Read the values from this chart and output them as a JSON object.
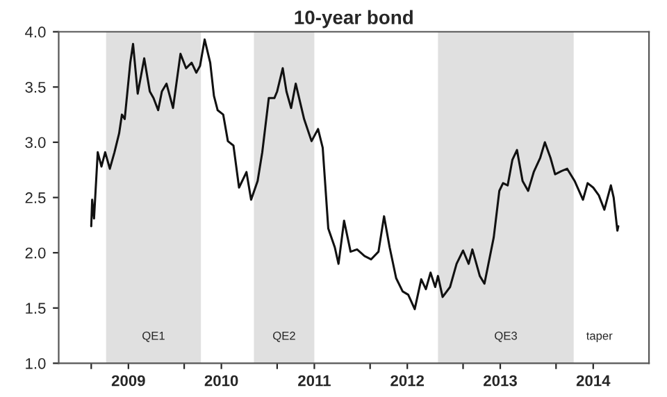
{
  "chart_data": {
    "type": "line",
    "title": "10-year bond",
    "x": [
      2009.0,
      2009.01,
      2009.03,
      2009.07,
      2009.11,
      2009.15,
      2009.2,
      2009.25,
      2009.3,
      2009.33,
      2009.36,
      2009.42,
      2009.45,
      2009.5,
      2009.57,
      2009.63,
      2009.67,
      2009.72,
      2009.76,
      2009.81,
      2009.88,
      2009.96,
      2010.02,
      2010.08,
      2010.13,
      2010.17,
      2010.22,
      2010.28,
      2010.32,
      2010.36,
      2010.42,
      2010.47,
      2010.53,
      2010.59,
      2010.67,
      2010.72,
      2010.79,
      2010.84,
      2010.91,
      2010.97,
      2011.0,
      2011.06,
      2011.1,
      2011.15,
      2011.2,
      2011.29,
      2011.37,
      2011.44,
      2011.49,
      2011.55,
      2011.62,
      2011.66,
      2011.72,
      2011.79,
      2011.86,
      2011.94,
      2012.01,
      2012.09,
      2012.15,
      2012.21,
      2012.28,
      2012.35,
      2012.41,
      2012.48,
      2012.55,
      2012.6,
      2012.65,
      2012.7,
      2012.73,
      2012.78,
      2012.86,
      2012.93,
      2013.0,
      2013.06,
      2013.1,
      2013.18,
      2013.23,
      2013.33,
      2013.39,
      2013.43,
      2013.48,
      2013.53,
      2013.58,
      2013.64,
      2013.7,
      2013.76,
      2013.83,
      2013.88,
      2013.94,
      2013.99,
      2014.06,
      2014.12,
      2014.2,
      2014.29,
      2014.34,
      2014.4,
      2014.46,
      2014.52,
      2014.59,
      2014.62,
      2014.66,
      2014.67
    ],
    "series": [
      {
        "color": "#111111",
        "values": [
          2.24,
          2.48,
          2.31,
          2.91,
          2.78,
          2.91,
          2.76,
          2.91,
          3.08,
          3.25,
          3.21,
          3.72,
          3.89,
          3.44,
          3.76,
          3.46,
          3.4,
          3.29,
          3.46,
          3.53,
          3.31,
          3.8,
          3.67,
          3.72,
          3.63,
          3.69,
          3.93,
          3.72,
          3.42,
          3.29,
          3.25,
          3.01,
          2.97,
          2.59,
          2.73,
          2.48,
          2.65,
          2.91,
          3.4,
          3.4,
          3.46,
          3.67,
          3.46,
          3.31,
          3.53,
          3.21,
          3.01,
          3.12,
          2.95,
          2.22,
          2.05,
          1.9,
          2.29,
          2.01,
          2.03,
          1.97,
          1.94,
          2.01,
          2.33,
          2.05,
          1.77,
          1.65,
          1.62,
          1.49,
          1.76,
          1.67,
          1.82,
          1.69,
          1.79,
          1.6,
          1.69,
          1.9,
          2.02,
          1.9,
          2.03,
          1.79,
          1.72,
          2.14,
          2.56,
          2.63,
          2.61,
          2.84,
          2.93,
          2.65,
          2.56,
          2.73,
          2.86,
          3.0,
          2.86,
          2.71,
          2.74,
          2.76,
          2.65,
          2.48,
          2.63,
          2.59,
          2.52,
          2.39,
          2.61,
          2.5,
          2.2,
          2.24
        ]
      }
    ],
    "xlim": [
      2008.65,
      2015.0
    ],
    "xticks": [
      {
        "value": 2009,
        "label": null
      },
      {
        "value": 2009.4,
        "label": "2009"
      },
      {
        "value": 2010,
        "label": null
      },
      {
        "value": 2010.4,
        "label": "2010"
      },
      {
        "value": 2011,
        "label": null
      },
      {
        "value": 2011.4,
        "label": "2011"
      },
      {
        "value": 2012,
        "label": null
      },
      {
        "value": 2012.4,
        "label": "2012"
      },
      {
        "value": 2013,
        "label": null
      },
      {
        "value": 2013.4,
        "label": "2013"
      },
      {
        "value": 2014,
        "label": null
      },
      {
        "value": 2014.4,
        "label": "2014"
      }
    ],
    "ylim": [
      1.0,
      4.0
    ],
    "yticks": [
      {
        "value": 1.0,
        "label": "1.0"
      },
      {
        "value": 1.5,
        "label": "1.5"
      },
      {
        "value": 2.0,
        "label": "2.0"
      },
      {
        "value": 2.5,
        "label": "2.5"
      },
      {
        "value": 3.0,
        "label": "3.0"
      },
      {
        "value": 3.5,
        "label": "3.5"
      },
      {
        "value": 4.0,
        "label": "4.0"
      }
    ],
    "bands": [
      {
        "axis": "x",
        "from": 2009.16,
        "to": 2010.18,
        "label": "QE1",
        "color": "#e0e0e0"
      },
      {
        "axis": "x",
        "from": 2010.75,
        "to": 2011.4,
        "label": "QE2",
        "color": "#e0e0e0"
      },
      {
        "axis": "x",
        "from": 2012.73,
        "to": 2014.19,
        "label": "QE3",
        "color": "#e0e0e0"
      }
    ],
    "annotations": [
      "taper"
    ],
    "grid": false,
    "legend": false,
    "marker": "none",
    "line_style": "solid"
  }
}
